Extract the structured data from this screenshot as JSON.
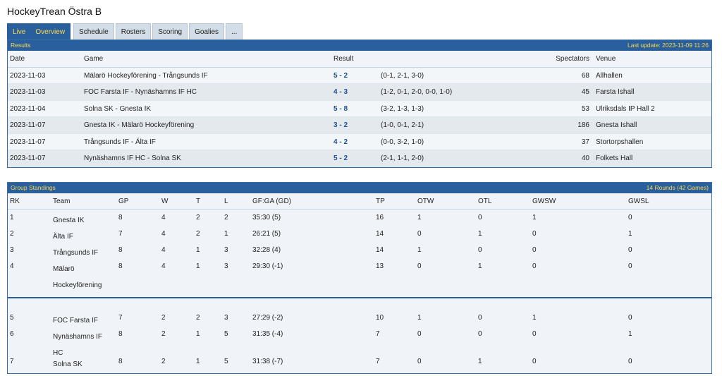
{
  "page": {
    "title": "HockeyTrean Östra B"
  },
  "tabs": {
    "live": "Live",
    "overview": "Overview",
    "schedule": "Schedule",
    "rosters": "Rosters",
    "scoring": "Scoring",
    "goalies": "Goalies",
    "more": "..."
  },
  "results": {
    "title": "Results",
    "last_update": "Last update: 2023-11-09 11:26",
    "columns": {
      "date": "Date",
      "game": "Game",
      "result": "Result",
      "spectators": "Spectators",
      "venue": "Venue"
    },
    "rows": [
      {
        "date": "2023-11-03",
        "game": "Mälarö Hockeyförening  -  Trångsunds IF",
        "score": "5 - 2",
        "periods": "(0-1, 2-1, 3-0)",
        "spectators": "68",
        "venue": "Allhallen"
      },
      {
        "date": "2023-11-03",
        "game": "FOC Farsta IF  -  Nynäshamns IF HC",
        "score": "4 - 3",
        "periods": "(1-2, 0-1, 2-0, 0-0, 1-0)",
        "spectators": "45",
        "venue": "Farsta Ishall"
      },
      {
        "date": "2023-11-04",
        "game": "Solna SK  -  Gnesta IK",
        "score": "5 - 8",
        "periods": "(3-2, 1-3, 1-3)",
        "spectators": "53",
        "venue": "Ulriksdals IP Hall 2"
      },
      {
        "date": "2023-11-07",
        "game": "Gnesta IK  -  Mälarö Hockeyförening",
        "score": "3 - 2",
        "periods": "(1-0, 0-1, 2-1)",
        "spectators": "186",
        "venue": "Gnesta Ishall"
      },
      {
        "date": "2023-11-07",
        "game": "Trångsunds IF  -  Älta IF",
        "score": "4 - 2",
        "periods": "(0-0, 3-2, 1-0)",
        "spectators": "37",
        "venue": "Stortorpshallen"
      },
      {
        "date": "2023-11-07",
        "game": "Nynäshamns IF HC  -  Solna SK",
        "score": "5 - 2",
        "periods": "(2-1, 1-1, 2-0)",
        "spectators": "40",
        "venue": "Folkets Hall"
      }
    ]
  },
  "standings": {
    "title": "Group Standings",
    "rounds": "14 Rounds (42 Games)",
    "columns": {
      "rk": "RK",
      "team": "Team",
      "gp": "GP",
      "w": "W",
      "t": "T",
      "l": "L",
      "gfga": "GF:GA (GD)",
      "tp": "TP",
      "otw": "OTW",
      "otl": "OTL",
      "gwsw": "GWSW",
      "gwsl": "GWSL"
    },
    "rows": [
      {
        "rk": "1",
        "team": "Gnesta IK",
        "gp": "8",
        "w": "4",
        "t": "2",
        "l": "2",
        "gfga": "35:30 (5)",
        "tp": "16",
        "otw": "1",
        "otl": "0",
        "gwsw": "1",
        "gwsl": "0"
      },
      {
        "rk": "2",
        "team": "Älta IF",
        "gp": "7",
        "w": "4",
        "t": "2",
        "l": "1",
        "gfga": "26:21 (5)",
        "tp": "14",
        "otw": "0",
        "otl": "1",
        "gwsw": "0",
        "gwsl": "1"
      },
      {
        "rk": "3",
        "team": "Trångsunds IF",
        "gp": "8",
        "w": "4",
        "t": "1",
        "l": "3",
        "gfga": "32:28 (4)",
        "tp": "14",
        "otw": "1",
        "otl": "0",
        "gwsw": "0",
        "gwsl": "0"
      },
      {
        "rk": "4",
        "team": "Mälarö Hockeyförening",
        "gp": "8",
        "w": "4",
        "t": "1",
        "l": "3",
        "gfga": "29:30 (-1)",
        "tp": "13",
        "otw": "0",
        "otl": "1",
        "gwsw": "0",
        "gwsl": "0"
      },
      {
        "rk": "5",
        "team": "FOC Farsta IF",
        "gp": "7",
        "w": "2",
        "t": "2",
        "l": "3",
        "gfga": "27:29 (-2)",
        "tp": "10",
        "otw": "1",
        "otl": "0",
        "gwsw": "1",
        "gwsl": "0"
      },
      {
        "rk": "6",
        "team": "Nynäshamns IF HC",
        "gp": "8",
        "w": "2",
        "t": "1",
        "l": "5",
        "gfga": "31:35 (-4)",
        "tp": "7",
        "otw": "0",
        "otl": "0",
        "gwsw": "0",
        "gwsl": "1"
      },
      {
        "rk": "7",
        "team": "Solna SK",
        "gp": "8",
        "w": "2",
        "t": "1",
        "l": "5",
        "gfga": "31:38 (-7)",
        "tp": "7",
        "otw": "0",
        "otl": "1",
        "gwsw": "0",
        "gwsl": "0"
      }
    ]
  },
  "colors": {
    "accent": "#2a5f9e",
    "highlight": "#ffd94a",
    "score": "#1e4f8f"
  }
}
